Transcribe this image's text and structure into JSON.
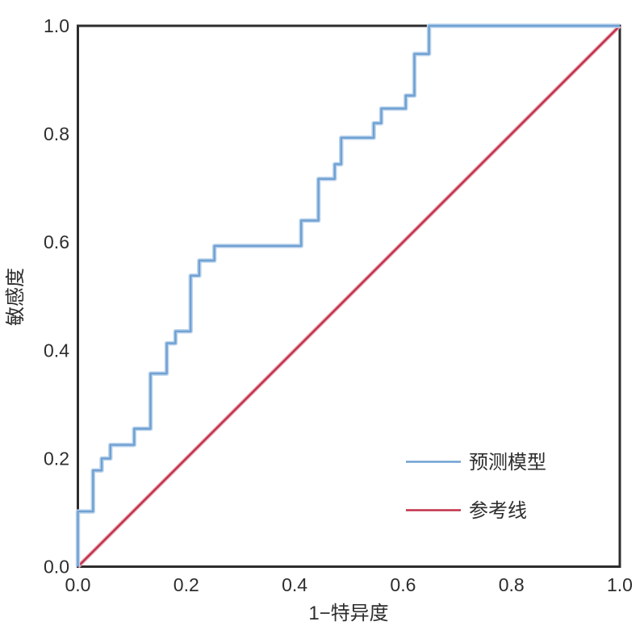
{
  "chart_data": {
    "type": "line",
    "subtype": "roc-curve",
    "title": "",
    "xlabel": "1−特异度",
    "ylabel": "敏感度",
    "xlim": [
      0.0,
      1.0
    ],
    "ylim": [
      0.0,
      1.0
    ],
    "xticks": [
      "0.0",
      "0.2",
      "0.4",
      "0.6",
      "0.8",
      "1.0"
    ],
    "yticks": [
      "0.0",
      "0.2",
      "0.4",
      "0.6",
      "0.8",
      "1.0"
    ],
    "grid": false,
    "legend_position": "inside lower right",
    "series": [
      {
        "name": "预测模型",
        "type": "step",
        "color": "#6FA0D2",
        "halo_color": "#BAD3EC",
        "points": [
          [
            0.0,
            0.0
          ],
          [
            0.0,
            0.102
          ],
          [
            0.028,
            0.102
          ],
          [
            0.028,
            0.178
          ],
          [
            0.044,
            0.178
          ],
          [
            0.044,
            0.2
          ],
          [
            0.06,
            0.2
          ],
          [
            0.06,
            0.225
          ],
          [
            0.104,
            0.225
          ],
          [
            0.104,
            0.255
          ],
          [
            0.134,
            0.255
          ],
          [
            0.134,
            0.357
          ],
          [
            0.164,
            0.357
          ],
          [
            0.164,
            0.413
          ],
          [
            0.18,
            0.413
          ],
          [
            0.18,
            0.435
          ],
          [
            0.208,
            0.435
          ],
          [
            0.208,
            0.538
          ],
          [
            0.224,
            0.538
          ],
          [
            0.224,
            0.566
          ],
          [
            0.252,
            0.566
          ],
          [
            0.252,
            0.593
          ],
          [
            0.412,
            0.593
          ],
          [
            0.412,
            0.64
          ],
          [
            0.444,
            0.64
          ],
          [
            0.444,
            0.717
          ],
          [
            0.474,
            0.717
          ],
          [
            0.474,
            0.744
          ],
          [
            0.486,
            0.744
          ],
          [
            0.486,
            0.793
          ],
          [
            0.546,
            0.793
          ],
          [
            0.546,
            0.82
          ],
          [
            0.56,
            0.82
          ],
          [
            0.56,
            0.847
          ],
          [
            0.605,
            0.847
          ],
          [
            0.605,
            0.871
          ],
          [
            0.621,
            0.871
          ],
          [
            0.621,
            0.948
          ],
          [
            0.648,
            0.948
          ],
          [
            0.648,
            1.0
          ],
          [
            1.0,
            1.0
          ]
        ]
      },
      {
        "name": "参考线",
        "type": "line",
        "color": "#C2304A",
        "halo_color": "#E8AFBA",
        "points": [
          [
            0.0,
            0.0
          ],
          [
            1.0,
            1.0
          ]
        ]
      }
    ]
  },
  "colors": {
    "frame": "#2d2d2d",
    "text": "#2d2d2d",
    "background": "#ffffff"
  }
}
